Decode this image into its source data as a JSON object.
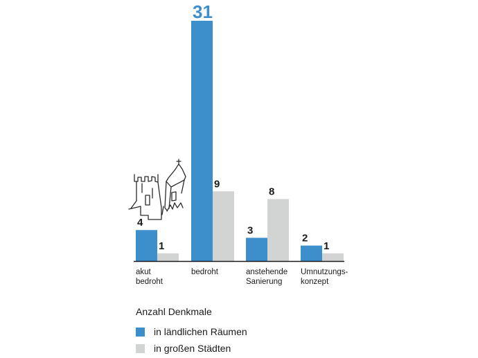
{
  "colors": {
    "rural": "#3d8fcc",
    "city": "#d2d3d3",
    "axis": "#1a1a1a",
    "sketch": "#2a2a2a"
  },
  "legend": {
    "title": "Anzahl Denkmale",
    "items": [
      {
        "label": "in ländlichen Räumen",
        "color": "#3d8fcc"
      },
      {
        "label": "in großen Städten",
        "color": "#d2d3d3"
      }
    ]
  },
  "chart_data": {
    "type": "bar",
    "categories": [
      [
        "akut",
        "bedroht"
      ],
      [
        "bedroht"
      ],
      [
        "anstehende",
        "Sanierung"
      ],
      [
        "Umnutzungs-",
        "konzept"
      ]
    ],
    "series": [
      {
        "name": "in ländlichen Räumen",
        "values": [
          4,
          31,
          3,
          2
        ]
      },
      {
        "name": "in großen Städten",
        "values": [
          1,
          9,
          8,
          1
        ]
      }
    ],
    "ylim": [
      0,
      31
    ],
    "grid": false,
    "legend_position": "bottom-left",
    "decoration_icon": "castle-ruin-sketch-icon"
  }
}
